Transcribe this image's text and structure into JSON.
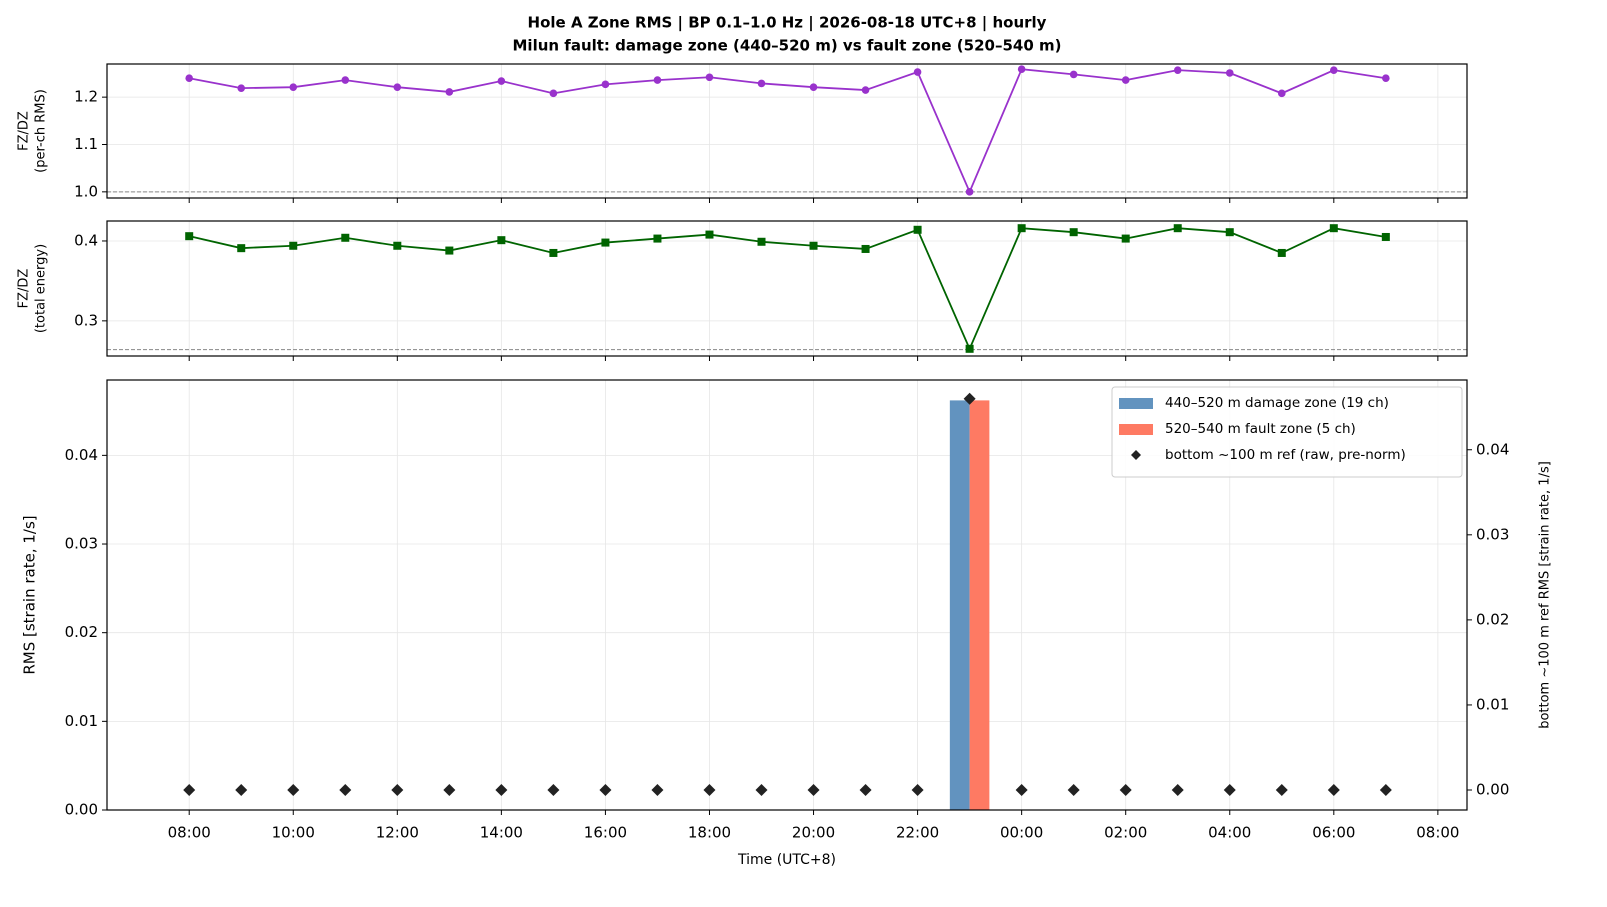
{
  "chart_data": [
    {
      "type": "line",
      "title": "Hole A Zone RMS  |  BP 0.1–1.0 Hz  |  2026-08-18 UTC+8  |  hourly",
      "subtitle": "Milun fault: damage zone (440–520 m) vs fault zone (520–540 m)",
      "ylabel": [
        "FZ/DZ",
        "(per-ch RMS)"
      ],
      "x": [
        8,
        9,
        10,
        11,
        12,
        13,
        14,
        15,
        16,
        17,
        18,
        19,
        20,
        21,
        22,
        23,
        24,
        25,
        26,
        27,
        28,
        29,
        30,
        31
      ],
      "series": [
        {
          "color": "#9932cc",
          "marker": "circle",
          "values": [
            1.24,
            1.219,
            1.221,
            1.236,
            1.221,
            1.211,
            1.234,
            1.208,
            1.227,
            1.236,
            1.242,
            1.229,
            1.221,
            1.215,
            1.253,
            1.0,
            1.259,
            1.248,
            1.236,
            1.257,
            1.251,
            1.208,
            1.257,
            1.24
          ]
        }
      ],
      "hline": 1.0,
      "ylim": [
        0.987,
        1.27
      ],
      "yticks": [
        {
          "value": 1.0,
          "label": "1.0"
        },
        1.1,
        1.2
      ],
      "grid": true
    },
    {
      "type": "line",
      "ylabel": [
        "FZ/DZ",
        "(total energy)"
      ],
      "x": [
        8,
        9,
        10,
        11,
        12,
        13,
        14,
        15,
        16,
        17,
        18,
        19,
        20,
        21,
        22,
        23,
        24,
        25,
        26,
        27,
        28,
        29,
        30,
        31
      ],
      "series": [
        {
          "color": "#006400",
          "marker": "square",
          "values": [
            0.406,
            0.391,
            0.394,
            0.404,
            0.394,
            0.388,
            0.401,
            0.385,
            0.398,
            0.403,
            0.408,
            0.399,
            0.394,
            0.39,
            0.414,
            0.265,
            0.416,
            0.411,
            0.403,
            0.416,
            0.411,
            0.385,
            0.416,
            0.405
          ]
        }
      ],
      "hline": 0.264,
      "ylim": [
        0.256,
        0.425
      ],
      "yticks": [
        0.3,
        0.4
      ],
      "grid": true
    },
    {
      "type": "bar",
      "xlabel": "Time (UTC+8)",
      "ylabel": [
        "RMS  [strain rate, 1/s]"
      ],
      "y2label": "bottom ~100 m ref RMS  [strain rate, 1/s]",
      "x": [
        8,
        9,
        10,
        11,
        12,
        13,
        14,
        15,
        16,
        17,
        18,
        19,
        20,
        21,
        22,
        23,
        24,
        25,
        26,
        27,
        28,
        29,
        30,
        31
      ],
      "series": [
        {
          "name": "440–520 m  damage zone (19 ch)",
          "color": "#6293bf",
          "type": "bar",
          "values": [
            0,
            0,
            0,
            0,
            0,
            0,
            0,
            0,
            0,
            0,
            0,
            0,
            0,
            0,
            0,
            0.0462,
            0,
            0,
            0,
            0,
            0,
            0,
            0,
            0
          ]
        },
        {
          "name": "520–540 m  fault zone (5 ch)",
          "color": "#fe7a63",
          "type": "bar",
          "values": [
            0,
            0,
            0,
            0,
            0,
            0,
            0,
            0,
            0,
            0,
            0,
            0,
            0,
            0,
            0,
            0.0462,
            0,
            0,
            0,
            0,
            0,
            0,
            0,
            0
          ]
        },
        {
          "name": "bottom ~100 m ref (raw, pre-norm)",
          "color": "#222222",
          "type": "scatter",
          "axis": "y2",
          "values": [
            0,
            0,
            0,
            0,
            0,
            0,
            0,
            0,
            0,
            0,
            0,
            0,
            0,
            0,
            0,
            0.046,
            0,
            0,
            0,
            0,
            0,
            0,
            0,
            0
          ]
        }
      ],
      "xlim": [
        6.42,
        32.56
      ],
      "xticks": [
        {
          "value": 8,
          "label": "08:00"
        },
        {
          "value": 10,
          "label": "10:00"
        },
        {
          "value": 12,
          "label": "12:00"
        },
        {
          "value": 14,
          "label": "14:00"
        },
        {
          "value": 16,
          "label": "16:00"
        },
        {
          "value": 18,
          "label": "18:00"
        },
        {
          "value": 20,
          "label": "20:00"
        },
        {
          "value": 22,
          "label": "22:00"
        },
        {
          "value": 24,
          "label": "00:00"
        },
        {
          "value": 26,
          "label": "02:00"
        },
        {
          "value": 28,
          "label": "04:00"
        },
        {
          "value": 30,
          "label": "06:00"
        },
        {
          "value": 32,
          "label": "08:00"
        }
      ],
      "ylim": [
        0,
        0.0485
      ],
      "yticks": [
        {
          "value": 0,
          "label": "0.00"
        },
        0.01,
        0.02,
        0.03,
        0.04
      ],
      "y2lim": [
        -0.00235,
        0.0482
      ],
      "y2ticks": [
        {
          "value": 0,
          "label": "0.00"
        },
        0.01,
        0.02,
        0.03,
        0.04
      ],
      "legend": "upper right",
      "grid": true
    }
  ]
}
